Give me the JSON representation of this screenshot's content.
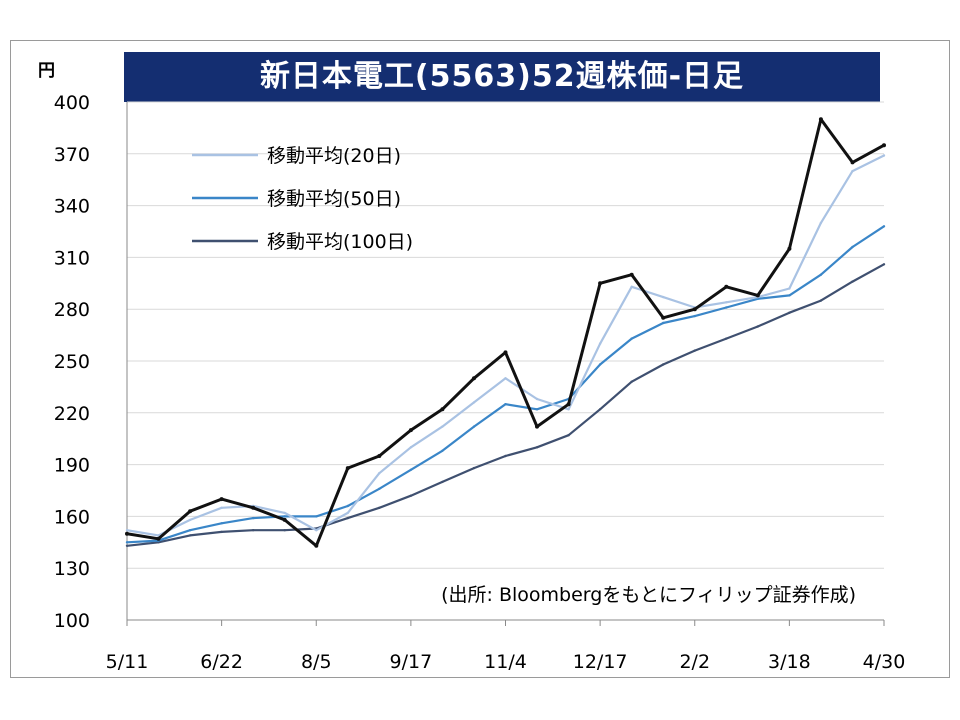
{
  "chart_data": {
    "type": "line",
    "title": "新日本電工(5563)52週株価-日足",
    "unit": "円",
    "source": "(出所: Bloombergをもとにフィリップ証券作成)",
    "ylim": [
      100,
      400
    ],
    "y_ticks": [
      100,
      130,
      160,
      190,
      220,
      250,
      280,
      310,
      340,
      370,
      400
    ],
    "x_ticks": [
      "5/11",
      "6/22",
      "8/5",
      "9/17",
      "11/4",
      "12/17",
      "2/2",
      "3/18",
      "4/30"
    ],
    "grid": "horizontal",
    "legend_position": "top-left",
    "x": [
      "5/11",
      "5/25",
      "6/8",
      "6/22",
      "7/6",
      "7/20",
      "8/5",
      "8/19",
      "9/3",
      "9/17",
      "10/1",
      "10/15",
      "11/4",
      "11/18",
      "12/3",
      "12/17",
      "1/5",
      "1/19",
      "2/2",
      "2/16",
      "3/2",
      "3/18",
      "4/1",
      "4/15",
      "4/30"
    ],
    "series": [
      {
        "name": "",
        "color": "#111111",
        "values": [
          150,
          147,
          163,
          170,
          165,
          158,
          143,
          188,
          195,
          210,
          222,
          240,
          255,
          212,
          225,
          295,
          300,
          275,
          280,
          293,
          288,
          315,
          390,
          365,
          375
        ]
      },
      {
        "name": "移動平均(20日)",
        "color": "#a9c2e3",
        "values": [
          152,
          149,
          158,
          165,
          166,
          162,
          152,
          162,
          185,
          200,
          212,
          226,
          240,
          228,
          222,
          260,
          293,
          287,
          281,
          284,
          287,
          292,
          330,
          360,
          369
        ]
      },
      {
        "name": "移動平均(50日)",
        "color": "#3a86c8",
        "values": [
          145,
          146,
          152,
          156,
          159,
          160,
          160,
          166,
          176,
          187,
          198,
          212,
          225,
          222,
          228,
          248,
          263,
          272,
          276,
          281,
          286,
          288,
          300,
          316,
          328
        ]
      },
      {
        "name": "移動平均(100日)",
        "color": "#3f5070",
        "values": [
          143,
          145,
          149,
          151,
          152,
          152,
          153,
          159,
          165,
          172,
          180,
          188,
          195,
          200,
          207,
          222,
          238,
          248,
          256,
          263,
          270,
          278,
          285,
          296,
          306
        ]
      }
    ]
  }
}
